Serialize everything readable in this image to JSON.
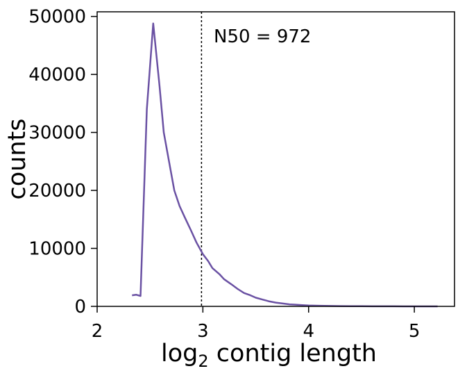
{
  "chart_data": {
    "type": "line",
    "title": "",
    "xlabel_prefix": "log",
    "xlabel_subscript": "2",
    "xlabel_suffix": " contig length",
    "ylabel": "counts",
    "xlim": [
      2.0,
      5.38
    ],
    "ylim": [
      0,
      50800
    ],
    "x_ticks": [
      2,
      3,
      4,
      5
    ],
    "y_ticks": [
      0,
      10000,
      20000,
      30000,
      40000,
      50000
    ],
    "grid": false,
    "legend": "none",
    "series": [
      {
        "color": "#6a51a3",
        "x": [
          2.33,
          2.37,
          2.41,
          2.47,
          2.53,
          2.59,
          2.63,
          2.69,
          2.73,
          2.78,
          2.83,
          2.89,
          2.94,
          3.0,
          3.05,
          3.09,
          3.16,
          3.2,
          3.27,
          3.33,
          3.39,
          3.45,
          3.5,
          3.57,
          3.63,
          3.69,
          3.75,
          3.82,
          3.87,
          3.94,
          4.0,
          4.1,
          4.2,
          4.3,
          4.4,
          4.5,
          4.6,
          4.7,
          4.8,
          4.9,
          5.0,
          5.1,
          5.22
        ],
        "y": [
          1900,
          2000,
          1800,
          34000,
          48800,
          38000,
          30000,
          24000,
          20000,
          17300,
          15300,
          13000,
          11000,
          9000,
          7800,
          6600,
          5500,
          4700,
          3800,
          3000,
          2300,
          1900,
          1500,
          1150,
          850,
          650,
          500,
          350,
          300,
          220,
          160,
          110,
          75,
          50,
          35,
          22,
          15,
          10,
          6,
          4,
          2,
          1,
          0
        ]
      }
    ],
    "vline": {
      "x": 2.987,
      "color": "#000000",
      "style": "dotted"
    },
    "annotation": "N50 = 972"
  }
}
